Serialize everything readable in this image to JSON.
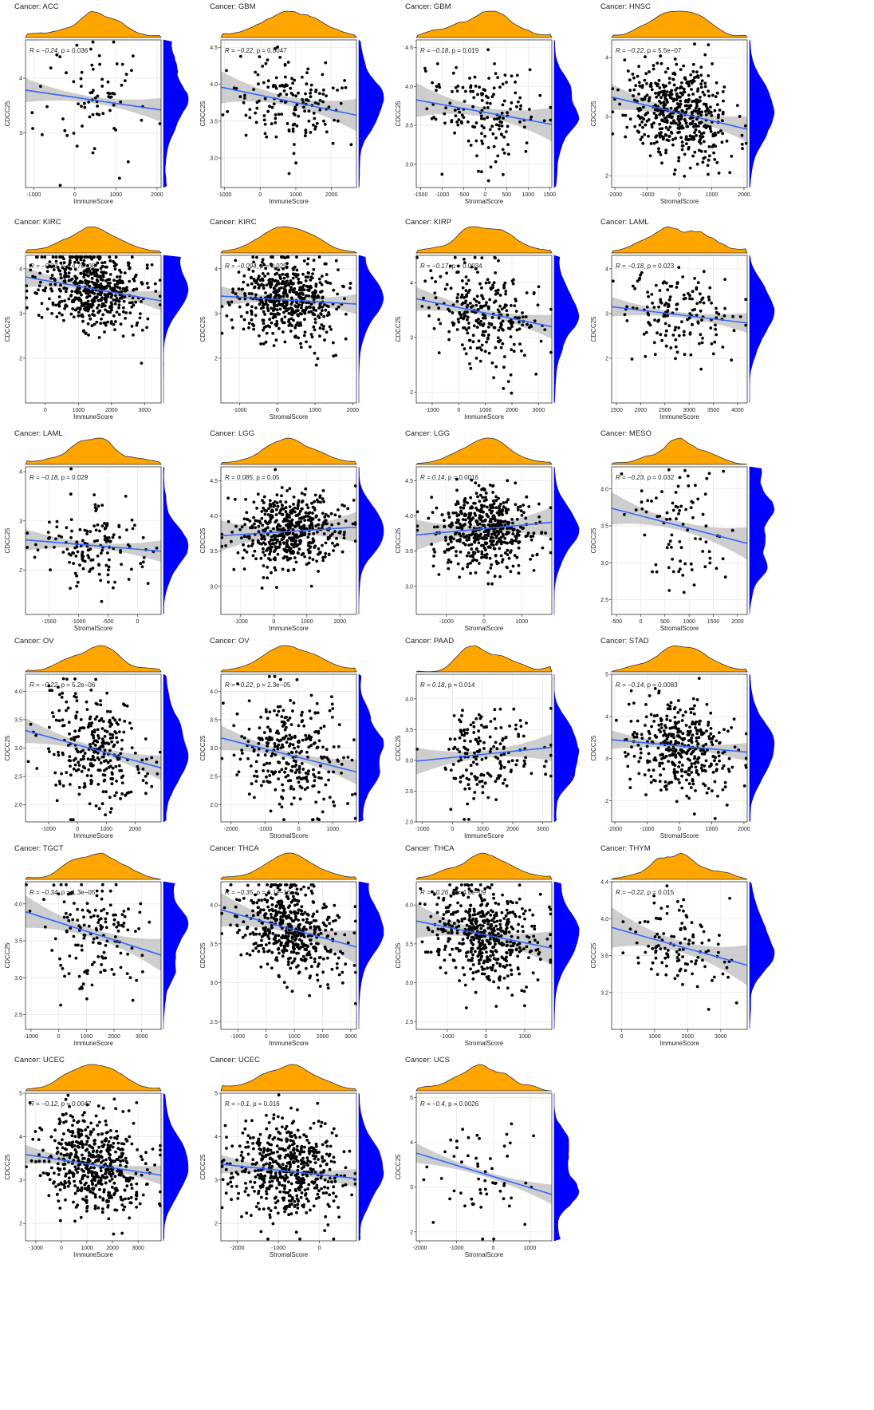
{
  "figure": {
    "y_label": "CDCC25",
    "score_immune": "ImmuneScore",
    "score_stromal": "StromalScore",
    "chart_data": [
      {
        "type": "scatter",
        "cancer": "Cancer: ACC",
        "xlabel": "ImmuneScore",
        "ylabel": "CDCC25",
        "stat_r": "R = −0.24",
        "stat_p": ", p = 0.036",
        "xlim": [
          -1200,
          2100
        ],
        "ylim": [
          2.0,
          4.7
        ],
        "xticks": [
          -1000,
          0,
          1000,
          2000
        ],
        "yticks": [
          3,
          4
        ],
        "n": 75,
        "slope": -0.00011,
        "intercept": 3.6,
        "sd": 0.55,
        "seed": 11,
        "r": -0.24
      },
      {
        "type": "scatter",
        "cancer": "Cancer: GBM",
        "xlabel": "ImmuneScore",
        "ylabel": "CDCC25",
        "stat_r": "R = −0.22",
        "stat_p": ", p = 0.0047",
        "xlim": [
          -1100,
          2700
        ],
        "ylim": [
          2.6,
          4.6
        ],
        "xticks": [
          -1000,
          0,
          1000,
          2000
        ],
        "yticks": [
          3.0,
          3.5,
          4.0,
          4.5
        ],
        "n": 160,
        "slope": -0.0001,
        "intercept": 3.77,
        "sd": 0.3,
        "seed": 12,
        "r": -0.22
      },
      {
        "type": "scatter",
        "cancer": "Cancer: GBM",
        "xlabel": "StromalScore",
        "ylabel": "CDCC25",
        "stat_r": "R = −0.18",
        "stat_p": ", p = 0.019",
        "xlim": [
          -1600,
          1550
        ],
        "ylim": [
          2.7,
          4.6
        ],
        "xticks": [
          -1500,
          -1000,
          -500,
          0,
          500,
          1000,
          1500
        ],
        "yticks": [
          3.0,
          3.5,
          4.0,
          4.5
        ],
        "n": 160,
        "slope": -0.0001,
        "intercept": 3.67,
        "sd": 0.3,
        "seed": 13,
        "r": -0.18
      },
      {
        "type": "scatter",
        "cancer": "Cancer: HNSC",
        "xlabel": "StromalScore",
        "ylabel": "CDCC25",
        "stat_r": "R = −0.22",
        "stat_p": ", p = 5.5e−07",
        "xlim": [
          -2100,
          2100
        ],
        "ylim": [
          1.8,
          4.3
        ],
        "xticks": [
          -2000,
          -1000,
          0,
          1000,
          2000
        ],
        "yticks": [
          2,
          3,
          4
        ],
        "n": 500,
        "slope": -0.00013,
        "intercept": 3.06,
        "sd": 0.4,
        "seed": 14,
        "r": -0.22
      },
      {
        "type": "scatter",
        "cancer": "Cancer: KIRC",
        "xlabel": "ImmuneScore",
        "ylabel": "CDCC25",
        "stat_r": "R = −0.23",
        "stat_p": ", p = 4.7e−08",
        "xlim": [
          -600,
          3500
        ],
        "ylim": [
          1.0,
          4.3
        ],
        "xticks": [
          0,
          1000,
          2000,
          3000
        ],
        "yticks": [
          2,
          3,
          4
        ],
        "n": 530,
        "slope": -0.00013,
        "intercept": 3.55,
        "sd": 0.45,
        "seed": 15,
        "r": -0.23
      },
      {
        "type": "scatter",
        "cancer": "Cancer: KIRC",
        "xlabel": "StromalScore",
        "ylabel": "CDCC25",
        "stat_r": "R = −0.094",
        "stat_p": ", p = 0.029",
        "xlim": [
          -1500,
          2100
        ],
        "ylim": [
          1.0,
          4.3
        ],
        "xticks": [
          -1000,
          0,
          1000,
          2000
        ],
        "yticks": [
          2,
          3,
          4
        ],
        "n": 530,
        "slope": -5e-05,
        "intercept": 3.3,
        "sd": 0.45,
        "seed": 16,
        "r": -0.094
      },
      {
        "type": "scatter",
        "cancer": "Cancer: KIRP",
        "xlabel": "ImmuneScore",
        "ylabel": "CDCC25",
        "stat_r": "R = −0.17",
        "stat_p": ", p = 0.0034",
        "xlim": [
          -1600,
          3500
        ],
        "ylim": [
          1.8,
          4.5
        ],
        "xticks": [
          -1000,
          0,
          1000,
          2000,
          3000
        ],
        "yticks": [
          2,
          3,
          4
        ],
        "n": 280,
        "slope": -0.0001,
        "intercept": 3.45,
        "sd": 0.45,
        "seed": 17,
        "r": -0.17
      },
      {
        "type": "scatter",
        "cancer": "Cancer: LAML",
        "xlabel": "ImmuneScore",
        "ylabel": "CDCC25",
        "stat_r": "R = −0.18",
        "stat_p": ", p = 0.023",
        "xlim": [
          1400,
          4200
        ],
        "ylim": [
          1.0,
          4.3
        ],
        "xticks": [
          1500,
          2000,
          2500,
          3000,
          3500,
          4000
        ],
        "yticks": [
          2,
          3,
          4
        ],
        "n": 160,
        "slope": -0.00013,
        "intercept": 2.97,
        "sd": 0.45,
        "seed": 18,
        "r": -0.18
      },
      {
        "type": "scatter",
        "cancer": "Cancer: LAML",
        "xlabel": "StromalScore",
        "ylabel": "CDCC25",
        "stat_r": "R = −0.18",
        "stat_p": ", p = 0.029",
        "xlim": [
          -1900,
          400
        ],
        "ylim": [
          1.1,
          4.1
        ],
        "xticks": [
          -1500,
          -1000,
          -500,
          0
        ],
        "yticks": [
          2,
          3,
          4
        ],
        "n": 150,
        "slope": -0.0001,
        "intercept": 2.5,
        "sd": 0.45,
        "seed": 19,
        "r": -0.18
      },
      {
        "type": "scatter",
        "cancer": "Cancer: LGG",
        "xlabel": "ImmuneScore",
        "ylabel": "CDCC25",
        "stat_r": "R = 0.085",
        "stat_p": ", p = 0.05",
        "xlim": [
          -1600,
          2500
        ],
        "ylim": [
          2.6,
          4.7
        ],
        "xticks": [
          -1000,
          0,
          1000,
          2000
        ],
        "yticks": [
          3.0,
          3.5,
          4.0,
          4.5
        ],
        "n": 510,
        "slope": 3e-05,
        "intercept": 3.78,
        "sd": 0.28,
        "seed": 20,
        "r": 0.085
      },
      {
        "type": "scatter",
        "cancer": "Cancer: LGG",
        "xlabel": "StromalScore",
        "ylabel": "CDCC25",
        "stat_r": "R = 0.14",
        "stat_p": ", p = 0.0016",
        "xlim": [
          -1800,
          1800
        ],
        "ylim": [
          2.6,
          4.7
        ],
        "xticks": [
          -1000,
          0,
          1000
        ],
        "yticks": [
          3.0,
          3.5,
          4.0,
          4.5
        ],
        "n": 510,
        "slope": 5e-05,
        "intercept": 3.82,
        "sd": 0.28,
        "seed": 21,
        "r": 0.14
      },
      {
        "type": "scatter",
        "cancer": "Cancer: MESO",
        "xlabel": "StromalScore",
        "ylabel": "CDCC25",
        "stat_r": "R = −0.23",
        "stat_p": ", p = 0.032",
        "xlim": [
          -600,
          2200
        ],
        "ylim": [
          2.3,
          4.3
        ],
        "xticks": [
          -500,
          0,
          500,
          1000,
          1500,
          2000
        ],
        "yticks": [
          2.5,
          3.0,
          3.5,
          4.0
        ],
        "n": 85,
        "slope": -0.00017,
        "intercept": 3.5,
        "sd": 0.4,
        "seed": 22,
        "r": -0.23
      },
      {
        "type": "scatter",
        "cancer": "Cancer: OV",
        "xlabel": "ImmuneScore",
        "ylabel": "CDCC25",
        "stat_r": "R = −0.22",
        "stat_p": ", p = 5.2e−06",
        "xlim": [
          -1800,
          2900
        ],
        "ylim": [
          1.7,
          4.3
        ],
        "xticks": [
          -1000,
          0,
          1000,
          2000
        ],
        "yticks": [
          2.0,
          2.5,
          3.0,
          3.5,
          4.0
        ],
        "n": 300,
        "slope": -0.00014,
        "intercept": 2.98,
        "sd": 0.5,
        "seed": 23,
        "r": -0.22
      },
      {
        "type": "scatter",
        "cancer": "Cancer: OV",
        "xlabel": "StromalScore",
        "ylabel": "CDCC25",
        "stat_r": "R = −0.22",
        "stat_p": ", p = 2.3e−05",
        "xlim": [
          -2300,
          1700
        ],
        "ylim": [
          1.7,
          4.3
        ],
        "xticks": [
          -2000,
          -1000,
          0,
          1000
        ],
        "yticks": [
          2.0,
          2.5,
          3.0,
          3.5,
          4.0
        ],
        "n": 300,
        "slope": -0.00015,
        "intercept": 2.88,
        "sd": 0.5,
        "seed": 24,
        "r": -0.22
      },
      {
        "type": "scatter",
        "cancer": "Cancer: PAAD",
        "xlabel": "ImmuneScore",
        "ylabel": "CDCC25",
        "stat_r": "R = 0.18",
        "stat_p": ", p = 0.014",
        "xlim": [
          -1200,
          3300
        ],
        "ylim": [
          2.0,
          4.4
        ],
        "xticks": [
          -1000,
          0,
          1000,
          2000,
          3000
        ],
        "yticks": [
          2.0,
          2.5,
          3.0,
          3.5,
          4.0
        ],
        "n": 180,
        "slope": 5e-05,
        "intercept": 3.1,
        "sd": 0.4,
        "seed": 25,
        "r": 0.18
      },
      {
        "type": "scatter",
        "cancer": "Cancer: STAD",
        "xlabel": "StromalScore",
        "ylabel": "CDCC25",
        "stat_r": "R = −0.14",
        "stat_p": ", p = 0.0083",
        "xlim": [
          -2100,
          2100
        ],
        "ylim": [
          1.5,
          5.0
        ],
        "xticks": [
          -2000,
          -1000,
          0,
          1000,
          2000
        ],
        "yticks": [
          2,
          3,
          4,
          5
        ],
        "n": 380,
        "slope": -7e-05,
        "intercept": 3.3,
        "sd": 0.55,
        "seed": 26,
        "r": -0.14
      },
      {
        "type": "scatter",
        "cancer": "Cancer: TGCT",
        "xlabel": "ImmuneScore",
        "ylabel": "CDCC25",
        "stat_r": "R = −0.34",
        "stat_p": ", p = 1.3e−05",
        "xlim": [
          -1200,
          3700
        ],
        "ylim": [
          2.3,
          4.3
        ],
        "xticks": [
          -1000,
          0,
          1000,
          2000,
          3000
        ],
        "yticks": [
          2.5,
          3.0,
          3.5,
          4.0
        ],
        "n": 150,
        "slope": -0.00012,
        "intercept": 3.6,
        "sd": 0.4,
        "seed": 27,
        "r": -0.34
      },
      {
        "type": "scatter",
        "cancer": "Cancer: THCA",
        "xlabel": "ImmuneScore",
        "ylabel": "CDCC25",
        "stat_r": "R = −0.35",
        "stat_p": ", p = 6.1e−16",
        "xlim": [
          -1600,
          3200
        ],
        "ylim": [
          2.4,
          4.3
        ],
        "xticks": [
          -1000,
          0,
          1000,
          2000,
          3000
        ],
        "yticks": [
          2.5,
          3.0,
          3.5,
          4.0
        ],
        "n": 510,
        "slope": -0.0001,
        "intercept": 3.7,
        "sd": 0.3,
        "seed": 28,
        "r": -0.35
      },
      {
        "type": "scatter",
        "cancer": "Cancer: THCA",
        "xlabel": "StromalScore",
        "ylabel": "CDCC25",
        "stat_r": "R = −0.26",
        "stat_p": ", p = 4.6e−09",
        "xlim": [
          -1800,
          1700
        ],
        "ylim": [
          2.4,
          4.3
        ],
        "xticks": [
          -1000,
          0,
          1000
        ],
        "yticks": [
          2.5,
          3.0,
          3.5,
          4.0
        ],
        "n": 510,
        "slope": -0.0001,
        "intercept": 3.62,
        "sd": 0.3,
        "seed": 29,
        "r": -0.26
      },
      {
        "type": "scatter",
        "cancer": "Cancer: THYM",
        "xlabel": "ImmuneScore",
        "ylabel": "CDCC25",
        "stat_r": "R = −0.22",
        "stat_p": ", p = 0.015",
        "xlim": [
          -300,
          3800
        ],
        "ylim": [
          2.8,
          4.4
        ],
        "xticks": [
          0,
          1000,
          2000,
          3000
        ],
        "yticks": [
          3.2,
          3.6,
          4.0,
          4.4
        ],
        "n": 120,
        "slope": -0.0001,
        "intercept": 3.7,
        "sd": 0.25,
        "seed": 30,
        "r": -0.22
      },
      {
        "type": "scatter",
        "cancer": "Cancer: UCEC",
        "xlabel": "ImmuneScore",
        "ylabel": "CDCC25",
        "stat_r": "R = −0.12",
        "stat_p": ", p = 0.0047",
        "xlim": [
          -1400,
          3900
        ],
        "ylim": [
          1.6,
          5.0
        ],
        "xticks": [
          -1000,
          0,
          1000,
          2000,
          3000
        ],
        "yticks": [
          2,
          3,
          4,
          5
        ],
        "n": 540,
        "slope": -9e-05,
        "intercept": 3.35,
        "sd": 0.55,
        "seed": 31,
        "r": -0.12
      },
      {
        "type": "scatter",
        "cancer": "Cancer: UCEC",
        "xlabel": "StromalScore",
        "ylabel": "CDCC25",
        "stat_r": "R = −0.1",
        "stat_p": ", p = 0.016",
        "xlim": [
          -2400,
          900
        ],
        "ylim": [
          1.6,
          5.0
        ],
        "xticks": [
          -2000,
          -1000,
          0
        ],
        "yticks": [
          2,
          3,
          4,
          5
        ],
        "n": 540,
        "slope": -0.0001,
        "intercept": 3.2,
        "sd": 0.55,
        "seed": 32,
        "r": -0.1
      },
      {
        "type": "scatter",
        "cancer": "Cancer: UCS",
        "xlabel": "StromalScore",
        "ylabel": "CDCC25",
        "stat_r": "R = −0.4",
        "stat_p": ", p = 0.0026",
        "xlim": [
          -2100,
          1600
        ],
        "ylim": [
          1.8,
          5.1
        ],
        "xticks": [
          -2000,
          -1000,
          0,
          1000
        ],
        "yticks": [
          2,
          3,
          4,
          5
        ],
        "n": 56,
        "slope": -0.00025,
        "intercept": 3.3,
        "sd": 0.6,
        "seed": 33,
        "r": -0.4
      }
    ]
  }
}
